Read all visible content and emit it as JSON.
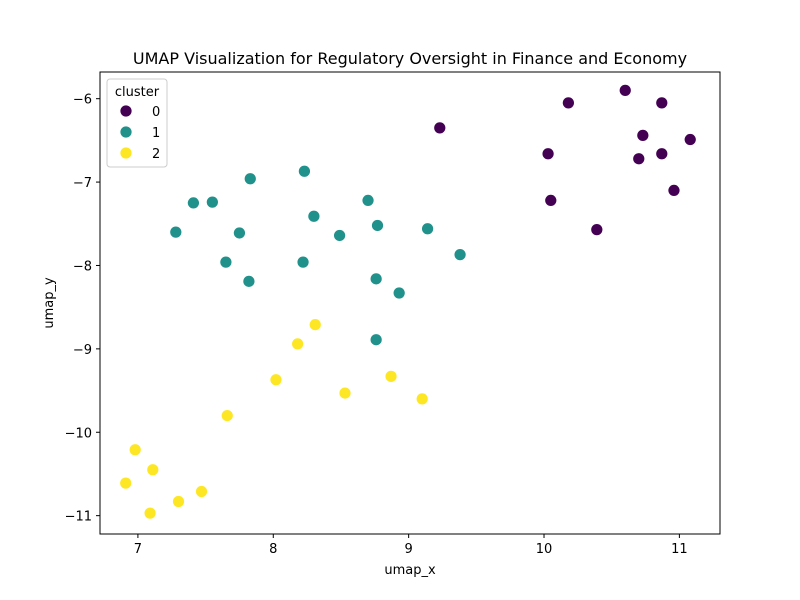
{
  "chart_data": {
    "type": "scatter",
    "title": "UMAP Visualization for Regulatory Oversight in Finance and Economy",
    "xlabel": "umap_x",
    "ylabel": "umap_y",
    "xlim": [
      6.72,
      11.3
    ],
    "ylim": [
      -11.22,
      -5.68
    ],
    "xticks": [
      7,
      8,
      9,
      10,
      11
    ],
    "yticks": [
      -6,
      -7,
      -8,
      -9,
      -10,
      -11
    ],
    "xtick_labels": [
      "7",
      "8",
      "9",
      "10",
      "11"
    ],
    "ytick_labels": [
      "−6",
      "−7",
      "−8",
      "−9",
      "−10",
      "−11"
    ],
    "grid": false,
    "legend": {
      "title": "cluster",
      "placement": "top-left"
    },
    "series": [
      {
        "name": "0",
        "color": "#440154",
        "points": [
          [
            9.23,
            -6.35
          ],
          [
            10.18,
            -6.05
          ],
          [
            10.6,
            -5.9
          ],
          [
            10.87,
            -6.05
          ],
          [
            10.73,
            -6.44
          ],
          [
            10.03,
            -6.66
          ],
          [
            10.7,
            -6.72
          ],
          [
            10.87,
            -6.66
          ],
          [
            11.08,
            -6.49
          ],
          [
            10.96,
            -7.1
          ],
          [
            10.05,
            -7.22
          ],
          [
            10.39,
            -7.57
          ]
        ]
      },
      {
        "name": "1",
        "color": "#21918c",
        "points": [
          [
            8.23,
            -6.87
          ],
          [
            7.83,
            -6.96
          ],
          [
            7.41,
            -7.25
          ],
          [
            7.55,
            -7.24
          ],
          [
            8.7,
            -7.22
          ],
          [
            8.3,
            -7.41
          ],
          [
            8.77,
            -7.52
          ],
          [
            9.14,
            -7.56
          ],
          [
            7.28,
            -7.6
          ],
          [
            7.75,
            -7.61
          ],
          [
            8.49,
            -7.64
          ],
          [
            9.38,
            -7.87
          ],
          [
            7.65,
            -7.96
          ],
          [
            8.22,
            -7.96
          ],
          [
            7.82,
            -8.19
          ],
          [
            8.76,
            -8.16
          ],
          [
            8.93,
            -8.33
          ],
          [
            8.76,
            -8.89
          ]
        ]
      },
      {
        "name": "2",
        "color": "#fde725",
        "points": [
          [
            8.31,
            -8.71
          ],
          [
            8.18,
            -8.94
          ],
          [
            8.02,
            -9.37
          ],
          [
            8.87,
            -9.33
          ],
          [
            8.53,
            -9.53
          ],
          [
            9.1,
            -9.6
          ],
          [
            7.66,
            -9.8
          ],
          [
            6.98,
            -10.21
          ],
          [
            7.11,
            -10.45
          ],
          [
            6.91,
            -10.61
          ],
          [
            7.47,
            -10.71
          ],
          [
            7.3,
            -10.83
          ],
          [
            7.09,
            -10.97
          ]
        ]
      }
    ]
  }
}
